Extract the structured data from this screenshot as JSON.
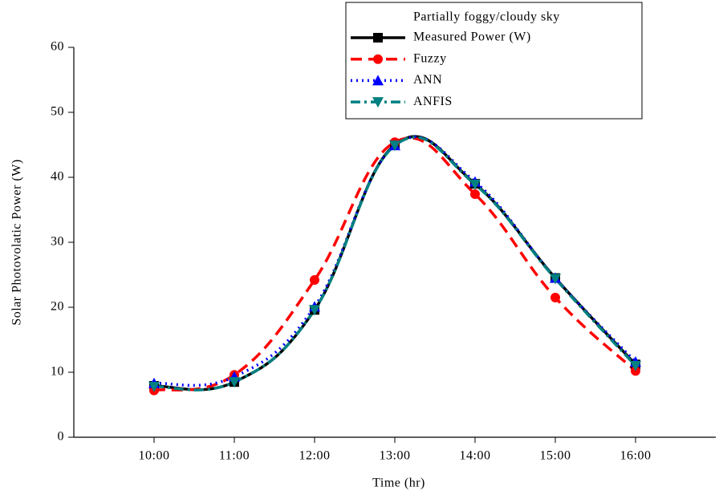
{
  "chart_data": {
    "type": "line",
    "legend_title": "Partially foggy/cloudy sky",
    "x_label": "Time (hr)",
    "y_label": "Solar Photovolatic Power (W)",
    "x": [
      10,
      11,
      12,
      13,
      14,
      15,
      16
    ],
    "xlim": [
      9,
      17
    ],
    "xticks": [
      {
        "value": 10,
        "label": "10:00"
      },
      {
        "value": 11,
        "label": "11:00"
      },
      {
        "value": 12,
        "label": "12:00"
      },
      {
        "value": 13,
        "label": "13:00"
      },
      {
        "value": 14,
        "label": "14:00"
      },
      {
        "value": 15,
        "label": "15:00"
      },
      {
        "value": 16,
        "label": "16:00"
      }
    ],
    "ylim": [
      0,
      60
    ],
    "yticks": [
      0,
      10,
      20,
      30,
      40,
      50,
      60
    ],
    "legend_position": "upper right",
    "series": [
      {
        "name": "Measured Power (W)",
        "color": "#000000",
        "marker": "square",
        "dash": "solid",
        "values": [
          7.9,
          8.5,
          19.6,
          45.0,
          39.0,
          24.5,
          11.2
        ]
      },
      {
        "name": "Fuzzy",
        "color": "#ff0000",
        "marker": "circle",
        "dash": "dash",
        "values": [
          7.2,
          9.6,
          24.2,
          45.4,
          37.4,
          21.5,
          10.2
        ]
      },
      {
        "name": "ANN",
        "color": "#0000ff",
        "marker": "triangle-up",
        "dash": "dot",
        "values": [
          8.3,
          9.3,
          20.1,
          44.9,
          39.3,
          24.5,
          11.6
        ]
      },
      {
        "name": "ANFIS",
        "color": "#008080",
        "marker": "triangle-down",
        "dash": "dashdot",
        "values": [
          7.8,
          8.5,
          19.6,
          44.9,
          38.9,
          24.4,
          11.0
        ]
      }
    ]
  }
}
